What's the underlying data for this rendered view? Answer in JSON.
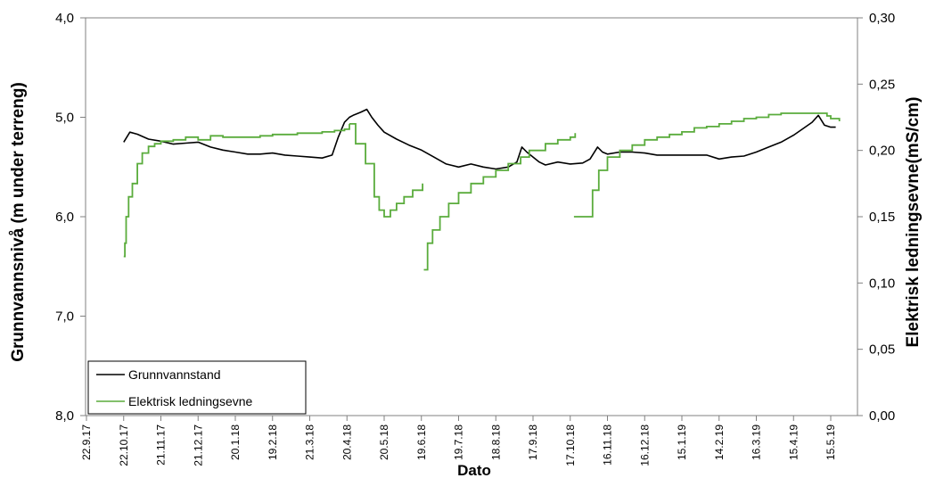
{
  "chart_data": {
    "type": "line",
    "xlabel": "Dato",
    "ylabel_left": "Grunnvannsnivå (m under terreng)",
    "ylabel_right": "Elektrisk ledningsevne(mS/cm)",
    "x_ticks": [
      "22.9.17",
      "22.10.17",
      "21.11.17",
      "21.12.17",
      "20.1.18",
      "19.2.18",
      "21.3.18",
      "20.4.18",
      "20.5.18",
      "19.6.18",
      "19.7.18",
      "18.8.18",
      "17.9.18",
      "17.10.18",
      "16.11.18",
      "16.12.18",
      "15.1.19",
      "14.2.19",
      "16.3.19",
      "15.4.19",
      "15.5.19"
    ],
    "y_left_ticks": [
      "4,0",
      "5,0",
      "6,0",
      "7,0",
      "8,0"
    ],
    "y_left_range": [
      4.0,
      8.0
    ],
    "y_left_inverted": true,
    "y_right_ticks": [
      "0,00",
      "0,05",
      "0,10",
      "0,15",
      "0,20",
      "0,25",
      "0,30"
    ],
    "y_right_range": [
      0.0,
      0.3
    ],
    "legend_position": "bottom-left",
    "series": [
      {
        "name": "Grunnvannstand",
        "axis": "left",
        "color": "#000000",
        "x": [
          "22.10.17",
          "27.10.17",
          "2.11.17",
          "11.11.17",
          "21.11.17",
          "1.12.17",
          "11.12.17",
          "21.12.17",
          "31.12.17",
          "10.1.18",
          "20.1.18",
          "30.1.18",
          "9.2.18",
          "19.2.18",
          "1.3.18",
          "11.3.18",
          "21.3.18",
          "31.3.18",
          "8.4.18",
          "13.4.18",
          "18.4.18",
          "22.4.18",
          "25.4.18",
          "1.5.18",
          "6.5.18",
          "10.5.18",
          "15.5.18",
          "20.5.18",
          "30.5.18",
          "9.6.18",
          "19.6.18",
          "29.6.18",
          "9.7.18",
          "19.7.18",
          "29.7.18",
          "8.8.18",
          "18.8.18",
          "28.8.18",
          "4.9.18",
          "8.9.18",
          "12.9.18",
          "17.9.18",
          "22.9.18",
          "27.9.18",
          "7.10.18",
          "17.10.18",
          "27.10.18",
          "2.11.18",
          "8.11.18",
          "12.11.18",
          "16.11.18",
          "26.11.18",
          "6.12.18",
          "16.12.18",
          "26.12.18",
          "5.1.19",
          "15.1.19",
          "25.1.19",
          "4.2.19",
          "14.2.19",
          "24.2.19",
          "6.3.19",
          "16.3.19",
          "26.3.19",
          "5.4.19",
          "15.4.19",
          "22.4.19",
          "30.4.19",
          "5.5.19",
          "10.5.19",
          "15.5.19",
          "19.5.19"
        ],
        "y": [
          5.25,
          5.15,
          5.17,
          5.22,
          5.24,
          5.27,
          5.26,
          5.25,
          5.3,
          5.33,
          5.35,
          5.37,
          5.37,
          5.36,
          5.38,
          5.39,
          5.4,
          5.41,
          5.38,
          5.2,
          5.05,
          5.0,
          4.98,
          4.95,
          4.92,
          5.0,
          5.08,
          5.15,
          5.22,
          5.28,
          5.33,
          5.4,
          5.47,
          5.5,
          5.47,
          5.5,
          5.52,
          5.5,
          5.45,
          5.3,
          5.35,
          5.4,
          5.45,
          5.48,
          5.45,
          5.47,
          5.46,
          5.42,
          5.3,
          5.35,
          5.37,
          5.35,
          5.35,
          5.36,
          5.38,
          5.38,
          5.38,
          5.38,
          5.38,
          5.42,
          5.4,
          5.39,
          5.35,
          5.3,
          5.25,
          5.18,
          5.12,
          5.05,
          4.98,
          5.08,
          5.1,
          5.1
        ]
      },
      {
        "name": "Elektrisk ledningsevne",
        "axis": "right",
        "color": "#5aac3c",
        "segments": [
          {
            "x": [
              "22.10.17",
              "23.10.17",
              "24.10.17",
              "26.10.17",
              "29.10.17",
              "2.11.17",
              "6.11.17",
              "11.11.17",
              "16.11.17",
              "21.11.17",
              "1.12.17",
              "11.12.17",
              "21.12.17",
              "31.12.17",
              "10.1.18",
              "20.1.18",
              "30.1.18",
              "9.2.18",
              "19.2.18",
              "1.3.18",
              "11.3.18",
              "21.3.18",
              "31.3.18",
              "10.4.18",
              "18.4.18",
              "22.4.18"
            ],
            "y": [
              0.12,
              0.13,
              0.15,
              0.165,
              0.175,
              0.19,
              0.198,
              0.203,
              0.205,
              0.207,
              0.208,
              0.21,
              0.208,
              0.211,
              0.21,
              0.21,
              0.21,
              0.211,
              0.212,
              0.212,
              0.213,
              0.213,
              0.214,
              0.215,
              0.216,
              0.22
            ]
          },
          {
            "x": [
              "22.4.18",
              "27.4.18",
              "5.5.18",
              "12.5.18",
              "16.5.18",
              "20.5.18",
              "25.5.18",
              "30.5.18",
              "5.6.18",
              "12.6.18",
              "20.6.18"
            ],
            "y": [
              0.22,
              0.205,
              0.19,
              0.165,
              0.155,
              0.15,
              0.155,
              0.16,
              0.165,
              0.17,
              0.175
            ]
          },
          {
            "x": [
              "21.6.18",
              "24.6.18",
              "28.6.18",
              "4.7.18",
              "11.7.18",
              "19.7.18",
              "29.7.18",
              "8.8.18",
              "18.8.18",
              "28.8.18",
              "7.9.18",
              "14.9.18",
              "17.9.18",
              "27.9.18",
              "7.10.18",
              "17.10.18",
              "21.10.18"
            ],
            "y": [
              0.11,
              0.13,
              0.14,
              0.15,
              0.16,
              0.168,
              0.175,
              0.18,
              0.185,
              0.19,
              0.195,
              0.2,
              0.2,
              0.205,
              0.208,
              0.21,
              0.213
            ]
          },
          {
            "x": [
              "20.10.18",
              "30.10.18",
              "4.11.18",
              "9.11.18",
              "16.11.18",
              "26.11.18",
              "6.12.18",
              "16.12.18",
              "26.12.18",
              "5.1.19",
              "15.1.19",
              "25.1.19",
              "4.2.19",
              "14.2.19",
              "24.2.19",
              "6.3.19",
              "16.3.19",
              "26.3.19",
              "5.4.19",
              "15.4.19",
              "25.4.19",
              "5.5.19",
              "12.5.19",
              "15.5.19",
              "22.5.19"
            ],
            "y": [
              0.15,
              0.15,
              0.17,
              0.185,
              0.195,
              0.2,
              0.204,
              0.208,
              0.21,
              0.212,
              0.214,
              0.217,
              0.218,
              0.22,
              0.222,
              0.224,
              0.225,
              0.227,
              0.228,
              0.228,
              0.228,
              0.228,
              0.226,
              0.224,
              0.222
            ]
          }
        ]
      }
    ]
  }
}
